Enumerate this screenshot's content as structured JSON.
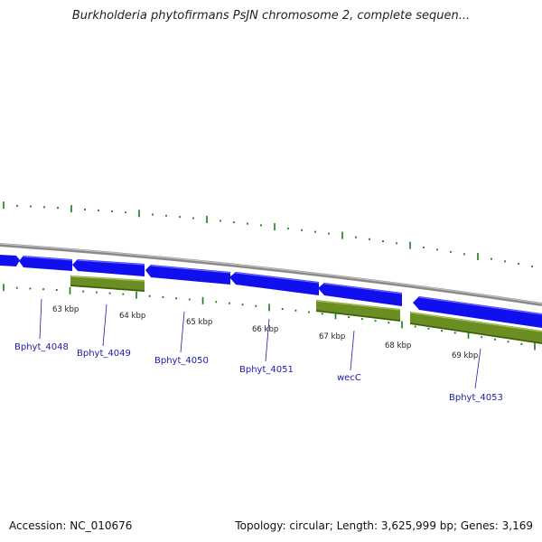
{
  "title": "Burkholderia phytofirmans PsJN chromosome 2, complete sequen...",
  "footer": {
    "accession": "Accession: NC_010676",
    "summary": "Topology: circular; Length: 3,625,999 bp; Genes: 3,169"
  },
  "colors": {
    "forward_gene": "#1010ee",
    "reverse_gene": "#6b8e23",
    "backbone": "#8a8a8a",
    "tick": "#1a7a1a",
    "label": "#1a1aa6"
  },
  "tick_labels": [
    "63 kbp",
    "64 kbp",
    "65 kbp",
    "66 kbp",
    "67 kbp",
    "68 kbp",
    "69 kbp"
  ],
  "gene_labels": [
    "Bphyt_4048",
    "Bphyt_4049",
    "Bphyt_4050",
    "Bphyt_4051",
    "wecC",
    "Bphyt_4053"
  ]
}
